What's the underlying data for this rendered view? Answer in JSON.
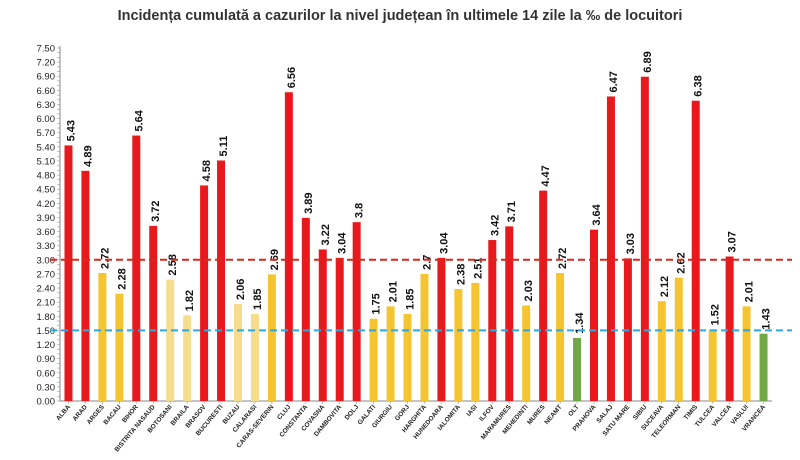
{
  "chart_data": {
    "type": "bar",
    "title": "Incidența cumulată a cazurilor la nivel județean în ultimele 14 zile la ‰ de locuitori",
    "xlabel": "",
    "ylabel": "",
    "ylim": [
      0,
      7.5
    ],
    "ytick_step": 0.1,
    "grid": false,
    "categories": [
      "ALBA",
      "ARAD",
      "ARGES",
      "BACAU",
      "BIHOR",
      "BISTRITA NASAUD",
      "BOTOSANI",
      "BRAILA",
      "BRASOV",
      "BUCURESTI",
      "BUZAU",
      "CALARASI",
      "CARAS-SEVERIN",
      "CLUJ",
      "CONSTANTA",
      "COVASNA",
      "DAMBOVITA",
      "DOLJ",
      "GALATI",
      "GIURGIU",
      "GORJ",
      "HARGHITA",
      "HUNEDOARA",
      "IALOMITA",
      "IASI",
      "ILFOV",
      "MARAMURES",
      "MEHEDINTI",
      "MURES",
      "NEAMT",
      "OLT",
      "PRAHOVA",
      "SALAJ",
      "SATU MARE",
      "SIBIU",
      "SUCEAVA",
      "TELEORMAN",
      "TIMIS",
      "TULCEA",
      "VALCEA",
      "VASLUI",
      "VRANCEA"
    ],
    "values": [
      5.43,
      4.89,
      2.72,
      2.28,
      5.64,
      3.72,
      2.58,
      1.82,
      4.58,
      5.11,
      2.06,
      1.85,
      2.69,
      6.56,
      3.89,
      3.22,
      3.04,
      3.8,
      1.75,
      2.01,
      1.85,
      2.7,
      3.04,
      2.38,
      2.51,
      3.42,
      3.71,
      2.03,
      4.47,
      2.72,
      1.34,
      3.64,
      6.47,
      3.03,
      6.89,
      2.12,
      2.62,
      6.38,
      1.52,
      3.07,
      2.01,
      1.43
    ],
    "value_labels": [
      "5.43",
      "4.89",
      "2.72",
      "2.28",
      "5.64",
      "3.72",
      "2.58",
      "1.82",
      "4.58",
      "5.11",
      "2.06",
      "1.85",
      "2.69",
      "6.56",
      "3.89",
      "3.22",
      "3.04",
      "3.8",
      "1.75",
      "2.01",
      "1.85",
      "2.7",
      "3.04",
      "2.38",
      "2.51",
      "3.42",
      "3.71",
      "2.03",
      "4.47",
      "2.72",
      "1.34",
      "3.64",
      "6.47",
      "3.03",
      "6.89",
      "2.12",
      "2.62",
      "6.38",
      "1.52",
      "3.07",
      "2.01",
      "1.43"
    ],
    "bar_colors": [
      "#e8191c",
      "#e8191c",
      "#f5c431",
      "#f5c431",
      "#e8191c",
      "#e8191c",
      "#f6dd8e",
      "#f6dd8e",
      "#e8191c",
      "#e8191c",
      "#f6dd8e",
      "#f6dd8e",
      "#f5c431",
      "#e8191c",
      "#e8191c",
      "#e8191c",
      "#e8191c",
      "#e8191c",
      "#f5c431",
      "#f5c431",
      "#f5c431",
      "#f5c431",
      "#e8191c",
      "#f5c431",
      "#f5c431",
      "#e8191c",
      "#e8191c",
      "#f5c431",
      "#e8191c",
      "#f5c431",
      "#70a845",
      "#e8191c",
      "#e8191c",
      "#e8191c",
      "#e8191c",
      "#f5c431",
      "#f5c431",
      "#e8191c",
      "#f5c431",
      "#e8191c",
      "#f5c431",
      "#70a845"
    ],
    "thresholds": [
      {
        "value": 3.0,
        "color": "#d9291c"
      },
      {
        "value": 1.5,
        "color": "#2ea8dc"
      }
    ]
  }
}
